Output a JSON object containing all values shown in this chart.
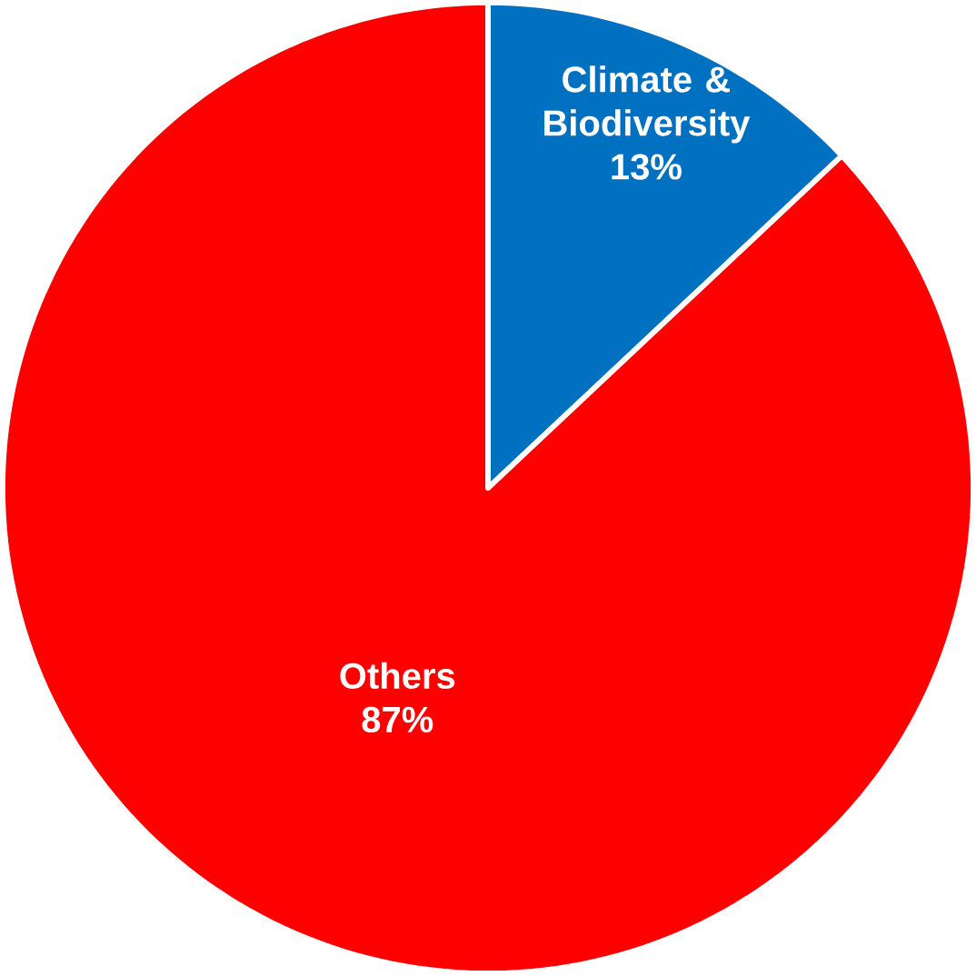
{
  "chart_data": {
    "type": "pie",
    "categories": [
      "Climate & Biodiversity",
      "Others"
    ],
    "values": [
      13,
      87
    ],
    "value_labels": [
      "13%",
      "87%"
    ],
    "colors": [
      "#0070c0",
      "#ff0000"
    ]
  }
}
